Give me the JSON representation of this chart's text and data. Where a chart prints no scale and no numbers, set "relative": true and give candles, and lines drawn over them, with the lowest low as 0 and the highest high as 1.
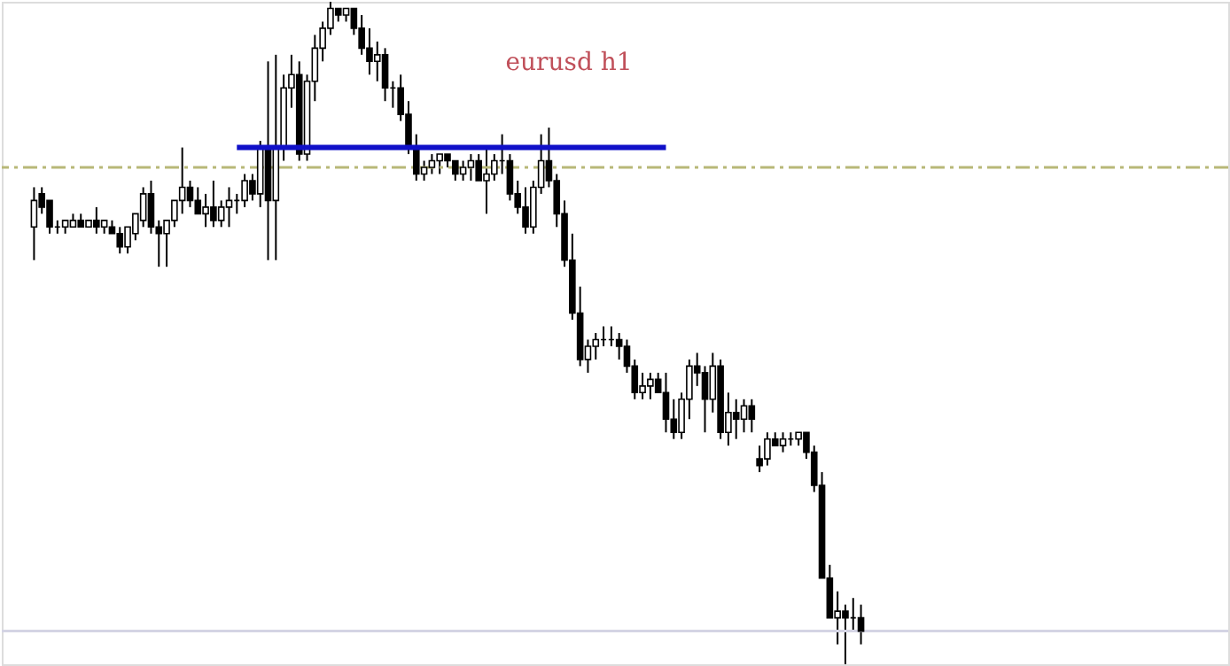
{
  "chart_data": {
    "type": "candlestick",
    "title": "eurusd h1",
    "relative": true,
    "categories": [
      null,
      null,
      null,
      null,
      null,
      null,
      null,
      null,
      null,
      null,
      null,
      null,
      null,
      null,
      null,
      null,
      null,
      null,
      null,
      null,
      null,
      null,
      null,
      null,
      null,
      null,
      null,
      null,
      null,
      null,
      null,
      null,
      null,
      null,
      null,
      null,
      null,
      null,
      null,
      null,
      null,
      null,
      null,
      null,
      null,
      null,
      null,
      null,
      null,
      null,
      null,
      null,
      null,
      null,
      null,
      null,
      null,
      null,
      null,
      null,
      null,
      null,
      null,
      null,
      null,
      null,
      null,
      null,
      null,
      null,
      null,
      null,
      null,
      null,
      null,
      null,
      null,
      null,
      null,
      null,
      null,
      null,
      null,
      null,
      null,
      null,
      null,
      null,
      null,
      null,
      null,
      null,
      null,
      null,
      null,
      null,
      null,
      null,
      null,
      null,
      null,
      null,
      null,
      null,
      null,
      null,
      null
    ],
    "ohlc": [
      [
        0.66,
        0.72,
        0.61,
        0.7
      ],
      [
        0.71,
        0.72,
        0.68,
        0.69
      ],
      [
        0.7,
        0.7,
        0.65,
        0.66
      ],
      [
        0.66,
        0.67,
        0.65,
        0.66
      ],
      [
        0.66,
        0.67,
        0.65,
        0.67
      ],
      [
        0.66,
        0.68,
        0.66,
        0.67
      ],
      [
        0.67,
        0.68,
        0.66,
        0.66
      ],
      [
        0.66,
        0.67,
        0.66,
        0.67
      ],
      [
        0.67,
        0.69,
        0.65,
        0.66
      ],
      [
        0.66,
        0.67,
        0.65,
        0.67
      ],
      [
        0.66,
        0.67,
        0.65,
        0.65
      ],
      [
        0.65,
        0.66,
        0.62,
        0.63
      ],
      [
        0.63,
        0.66,
        0.62,
        0.66
      ],
      [
        0.65,
        0.68,
        0.64,
        0.68
      ],
      [
        0.67,
        0.72,
        0.66,
        0.71
      ],
      [
        0.71,
        0.73,
        0.65,
        0.66
      ],
      [
        0.66,
        0.67,
        0.6,
        0.65
      ],
      [
        0.65,
        0.67,
        0.6,
        0.67
      ],
      [
        0.67,
        0.7,
        0.66,
        0.7
      ],
      [
        0.7,
        0.78,
        0.68,
        0.72
      ],
      [
        0.72,
        0.73,
        0.69,
        0.7
      ],
      [
        0.7,
        0.72,
        0.68,
        0.68
      ],
      [
        0.68,
        0.71,
        0.66,
        0.69
      ],
      [
        0.69,
        0.73,
        0.66,
        0.67
      ],
      [
        0.67,
        0.7,
        0.66,
        0.69
      ],
      [
        0.69,
        0.72,
        0.66,
        0.7
      ],
      [
        0.7,
        0.71,
        0.68,
        0.7
      ],
      [
        0.7,
        0.74,
        0.69,
        0.73
      ],
      [
        0.73,
        0.74,
        0.7,
        0.71
      ],
      [
        0.71,
        0.79,
        0.69,
        0.78
      ],
      [
        0.78,
        0.91,
        0.61,
        0.7
      ],
      [
        0.7,
        0.92,
        0.61,
        0.78
      ],
      [
        0.78,
        0.89,
        0.76,
        0.87
      ],
      [
        0.87,
        0.92,
        0.84,
        0.89
      ],
      [
        0.89,
        0.91,
        0.76,
        0.77
      ],
      [
        0.77,
        0.89,
        0.76,
        0.88
      ],
      [
        0.88,
        0.95,
        0.85,
        0.93
      ],
      [
        0.93,
        0.97,
        0.91,
        0.96
      ],
      [
        0.96,
        1.0,
        0.95,
        0.99
      ],
      [
        0.99,
        0.99,
        0.97,
        0.98
      ],
      [
        0.98,
        0.99,
        0.97,
        0.99
      ],
      [
        0.99,
        0.99,
        0.95,
        0.96
      ],
      [
        0.96,
        0.98,
        0.92,
        0.93
      ],
      [
        0.93,
        0.96,
        0.89,
        0.91
      ],
      [
        0.91,
        0.94,
        0.88,
        0.92
      ],
      [
        0.92,
        0.93,
        0.85,
        0.87
      ],
      [
        0.87,
        0.88,
        0.84,
        0.87
      ],
      [
        0.87,
        0.89,
        0.82,
        0.83
      ],
      [
        0.83,
        0.85,
        0.77,
        0.78
      ],
      [
        0.78,
        0.8,
        0.73,
        0.74
      ],
      [
        0.74,
        0.76,
        0.73,
        0.75
      ],
      [
        0.75,
        0.77,
        0.74,
        0.76
      ],
      [
        0.76,
        0.77,
        0.74,
        0.77
      ],
      [
        0.77,
        0.77,
        0.75,
        0.76
      ],
      [
        0.76,
        0.76,
        0.73,
        0.74
      ],
      [
        0.74,
        0.76,
        0.73,
        0.75
      ],
      [
        0.75,
        0.77,
        0.73,
        0.76
      ],
      [
        0.76,
        0.77,
        0.73,
        0.73
      ],
      [
        0.73,
        0.78,
        0.68,
        0.74
      ],
      [
        0.74,
        0.77,
        0.73,
        0.76
      ],
      [
        0.76,
        0.8,
        0.74,
        0.76
      ],
      [
        0.76,
        0.77,
        0.7,
        0.71
      ],
      [
        0.71,
        0.73,
        0.68,
        0.69
      ],
      [
        0.69,
        0.72,
        0.65,
        0.66
      ],
      [
        0.66,
        0.73,
        0.65,
        0.72
      ],
      [
        0.72,
        0.8,
        0.71,
        0.76
      ],
      [
        0.76,
        0.81,
        0.72,
        0.73
      ],
      [
        0.73,
        0.74,
        0.66,
        0.68
      ],
      [
        0.68,
        0.7,
        0.6,
        0.61
      ],
      [
        0.61,
        0.65,
        0.52,
        0.53
      ],
      [
        0.53,
        0.57,
        0.45,
        0.46
      ],
      [
        0.46,
        0.49,
        0.44,
        0.48
      ],
      [
        0.48,
        0.5,
        0.46,
        0.49
      ],
      [
        0.49,
        0.51,
        0.48,
        0.49
      ],
      [
        0.49,
        0.51,
        0.48,
        0.49
      ],
      [
        0.49,
        0.5,
        0.46,
        0.48
      ],
      [
        0.48,
        0.49,
        0.44,
        0.45
      ],
      [
        0.45,
        0.46,
        0.4,
        0.41
      ],
      [
        0.41,
        0.44,
        0.4,
        0.42
      ],
      [
        0.42,
        0.44,
        0.4,
        0.43
      ],
      [
        0.43,
        0.44,
        0.41,
        0.41
      ],
      [
        0.41,
        0.44,
        0.35,
        0.37
      ],
      [
        0.37,
        0.4,
        0.34,
        0.35
      ],
      [
        0.35,
        0.41,
        0.34,
        0.4
      ],
      [
        0.4,
        0.46,
        0.37,
        0.45
      ],
      [
        0.45,
        0.47,
        0.42,
        0.44
      ],
      [
        0.44,
        0.45,
        0.35,
        0.4
      ],
      [
        0.4,
        0.47,
        0.38,
        0.45
      ],
      [
        0.45,
        0.46,
        0.34,
        0.35
      ],
      [
        0.35,
        0.41,
        0.33,
        0.38
      ],
      [
        0.38,
        0.4,
        0.34,
        0.37
      ],
      [
        0.37,
        0.4,
        0.35,
        0.39
      ],
      [
        0.39,
        0.4,
        0.35,
        0.37
      ],
      [
        0.31,
        0.33,
        0.29,
        0.3
      ],
      [
        0.31,
        0.35,
        0.3,
        0.34
      ],
      [
        0.34,
        0.35,
        0.33,
        0.33
      ],
      [
        0.33,
        0.35,
        0.32,
        0.34
      ],
      [
        0.34,
        0.35,
        0.33,
        0.34
      ],
      [
        0.34,
        0.35,
        0.33,
        0.35
      ],
      [
        0.35,
        0.35,
        0.31,
        0.32
      ],
      [
        0.32,
        0.33,
        0.26,
        0.27
      ],
      [
        0.27,
        0.29,
        0.13,
        0.13
      ],
      [
        0.13,
        0.15,
        0.07,
        0.07
      ],
      [
        0.07,
        0.11,
        0.03,
        0.08
      ],
      [
        0.08,
        0.09,
        0.0,
        0.07
      ],
      [
        0.07,
        0.1,
        0.05,
        0.07
      ],
      [
        0.07,
        0.09,
        0.03,
        0.05
      ]
    ],
    "series": [
      {
        "type": "line",
        "color": "#1010c8",
        "values": [
          null,
          null,
          null,
          null,
          null,
          null,
          null,
          null,
          null,
          null,
          null,
          null,
          null,
          null,
          null,
          null,
          null,
          null,
          null,
          null,
          null,
          null,
          null,
          null,
          null,
          null,
          0.78,
          0.78,
          0.78,
          0.78,
          0.78,
          0.78,
          0.78,
          0.78,
          0.78,
          0.78,
          0.78,
          0.78,
          0.78,
          0.78,
          0.78,
          0.78,
          0.78,
          0.78,
          0.78,
          0.78,
          0.78,
          0.78,
          0.78,
          0.78,
          0.78,
          0.78,
          0.78,
          0.78,
          0.78,
          0.78,
          0.78,
          0.78,
          0.78,
          0.78,
          0.78,
          0.78,
          0.78,
          0.78,
          0.78,
          0.78,
          0.78,
          0.78,
          0.78,
          0.78,
          0.78,
          0.78,
          0.78,
          0.78,
          0.78,
          0.78,
          0.78,
          0.78,
          0.78,
          0.78,
          0.78,
          0.78,
          null,
          null,
          null,
          null,
          null,
          null,
          null,
          null,
          null,
          null,
          null,
          null,
          null,
          null,
          null,
          null,
          null,
          null,
          null,
          null,
          null,
          null,
          null,
          null,
          null
        ]
      }
    ],
    "ref_lines": [
      {
        "axis": "y",
        "value": 0.75,
        "color": "#b8b878",
        "line_style": "dashed"
      },
      {
        "axis": "y",
        "value": 0.05,
        "color": "#d4d4e4",
        "line_style": "solid"
      }
    ]
  }
}
